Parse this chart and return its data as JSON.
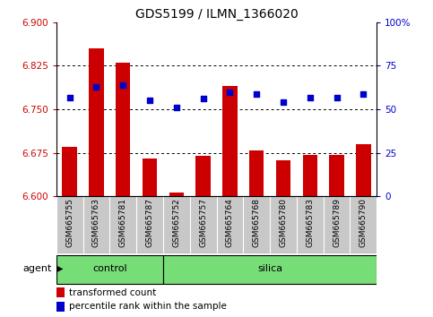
{
  "title": "GDS5199 / ILMN_1366020",
  "samples": [
    "GSM665755",
    "GSM665763",
    "GSM665781",
    "GSM665787",
    "GSM665752",
    "GSM665757",
    "GSM665764",
    "GSM665768",
    "GSM665780",
    "GSM665783",
    "GSM665789",
    "GSM665790"
  ],
  "bar_values": [
    6.685,
    6.855,
    6.83,
    6.665,
    6.607,
    6.67,
    6.79,
    6.68,
    6.662,
    6.672,
    6.672,
    6.69
  ],
  "dot_values": [
    57,
    63,
    64,
    55,
    51,
    56,
    60,
    59,
    54,
    57,
    57,
    59
  ],
  "control_indices": [
    0,
    1,
    2,
    3
  ],
  "silica_indices": [
    4,
    5,
    6,
    7,
    8,
    9,
    10,
    11
  ],
  "ylim_left": [
    6.6,
    6.9
  ],
  "ylim_right": [
    0,
    100
  ],
  "yticks_left": [
    6.6,
    6.675,
    6.75,
    6.825,
    6.9
  ],
  "yticks_right": [
    0,
    25,
    50,
    75,
    100
  ],
  "ytick_labels_right": [
    "0",
    "25",
    "50",
    "75",
    "100%"
  ],
  "bar_color": "#cc0000",
  "dot_color": "#0000cc",
  "tick_area_bg": "#c8c8c8",
  "group_color": "#77dd77",
  "legend_items": [
    {
      "color": "#cc0000",
      "label": "transformed count"
    },
    {
      "color": "#0000cc",
      "label": "percentile rank within the sample"
    }
  ]
}
